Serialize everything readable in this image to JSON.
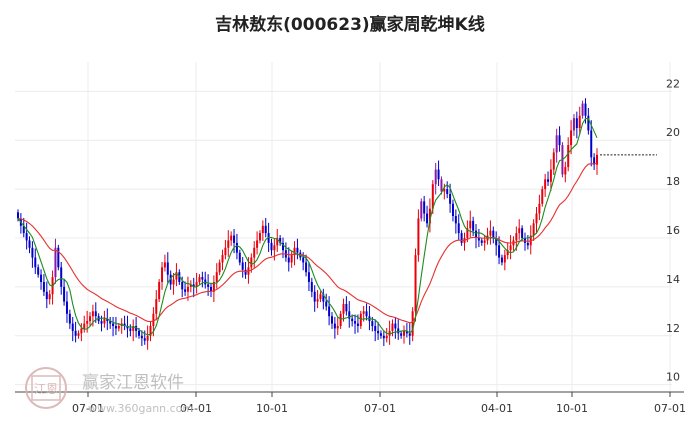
{
  "chart_data": {
    "type": "candlestick",
    "title": "吉林敖东(000623)赢家周乾坤K线",
    "x_tick_labels": [
      "07-01",
      "04-01",
      "10-01",
      "07-01",
      "04-01",
      "10-01",
      "07-01"
    ],
    "y_ticks": [
      10,
      12,
      14,
      16,
      18,
      20,
      22
    ],
    "ylim": [
      9.7,
      23.2
    ],
    "last_price": 19.4,
    "up_color": "#e8000b",
    "down_color": "#0000cc",
    "reverse_color": "#8a1aa0",
    "ma_short_color": "#1e8c1e",
    "ma_long_color": "#e83030",
    "grid": true,
    "legend": "none",
    "close": [
      16.8,
      16.5,
      16.2,
      15.9,
      15.6,
      15.2,
      14.8,
      14.5,
      14.2,
      13.8,
      13.5,
      13.7,
      14.4,
      15.6,
      14.8,
      14.0,
      13.4,
      12.9,
      12.5,
      12.2,
      12.0,
      12.1,
      12.3,
      12.5,
      12.6,
      12.8,
      13.0,
      12.8,
      12.6,
      12.5,
      12.7,
      12.6,
      12.5,
      12.4,
      12.3,
      12.4,
      12.5,
      12.4,
      12.3,
      12.2,
      12.4,
      12.2,
      12.0,
      11.9,
      11.8,
      12.0,
      12.4,
      12.9,
      13.5,
      14.2,
      14.8,
      15.0,
      14.5,
      14.1,
      14.3,
      14.6,
      14.2,
      13.9,
      13.8,
      14.0,
      14.1,
      14.0,
      14.2,
      14.4,
      14.3,
      14.1,
      14.0,
      13.8,
      14.2,
      14.6,
      15.0,
      15.3,
      15.6,
      15.9,
      16.1,
      15.8,
      15.4,
      15.0,
      14.7,
      14.5,
      14.8,
      15.2,
      15.6,
      15.9,
      16.2,
      16.5,
      16.2,
      15.8,
      15.5,
      15.7,
      16.0,
      15.8,
      15.5,
      15.2,
      15.0,
      15.3,
      15.6,
      15.4,
      15.2,
      15.0,
      14.6,
      14.2,
      13.8,
      13.4,
      13.5,
      13.7,
      13.4,
      13.2,
      12.8,
      12.5,
      12.3,
      12.4,
      12.9,
      13.3,
      13.0,
      12.7,
      12.6,
      12.5,
      12.4,
      12.9,
      13.0,
      12.8,
      12.6,
      12.4,
      12.2,
      12.1,
      12.0,
      11.9,
      12.0,
      12.2,
      12.5,
      12.3,
      12.1,
      12.0,
      12.2,
      12.1,
      12.0,
      13.0,
      15.3,
      16.8,
      17.5,
      17.0,
      16.6,
      17.2,
      18.2,
      18.8,
      18.4,
      17.9,
      18.0,
      17.8,
      17.4,
      16.9,
      16.6,
      16.2,
      15.8,
      16.0,
      16.4,
      16.7,
      16.3,
      16.0,
      15.9,
      15.8,
      15.9,
      16.1,
      16.3,
      16.0,
      15.7,
      15.2,
      15.0,
      15.3,
      15.5,
      15.7,
      15.9,
      16.2,
      16.4,
      16.0,
      15.8,
      15.7,
      16.1,
      16.6,
      17.0,
      17.4,
      18.0,
      18.4,
      18.3,
      18.8,
      19.5,
      20.2,
      19.8,
      18.6,
      18.9,
      19.8,
      20.4,
      20.9,
      20.5,
      21.0,
      21.5,
      21.0,
      20.4,
      19.3,
      19.0,
      19.4
    ]
  },
  "watermark": {
    "name": "赢家江恩软件",
    "url": "www.360gann.com",
    "logo_text": "江恩"
  }
}
